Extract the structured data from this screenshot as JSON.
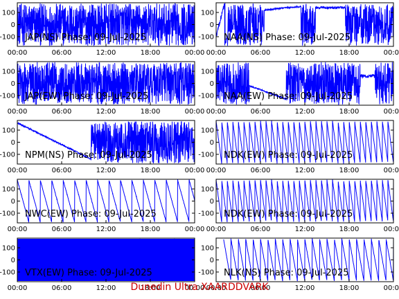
{
  "footer": {
    "credit": "Dunedin Ultra XAARDDVARK",
    "color": "#cc0000"
  },
  "chart_data": [
    {
      "type": "line",
      "title": "JAP(NS) Phase: 09-Jul-2025",
      "x_ticks": [
        "00:00",
        "06:00",
        "12:00",
        "18:00",
        "00:00"
      ],
      "y_ticks": [
        100,
        0,
        -100
      ],
      "xlim": [
        0,
        24
      ],
      "ylim": [
        -180,
        180
      ],
      "color": "#0000ff",
      "pattern": "dense_full"
    },
    {
      "type": "line",
      "title": "NAA(NS) Phase: 09-Jul-2025",
      "x_ticks": [
        "00:00",
        "06:00",
        "12:00",
        "18:00",
        "00:00"
      ],
      "y_ticks": [
        100,
        0,
        -100
      ],
      "xlim": [
        0,
        24
      ],
      "ylim": [
        -180,
        180
      ],
      "color": "#0000ff",
      "pattern": "dense_gap_day"
    },
    {
      "type": "line",
      "title": "JAP(EW) Phase: 09-Jul-2025",
      "x_ticks": [
        "00:00",
        "06:00",
        "12:00",
        "18:00",
        "00:00"
      ],
      "y_ticks": [
        100,
        0,
        -100
      ],
      "xlim": [
        0,
        24
      ],
      "ylim": [
        -180,
        180
      ],
      "color": "#0000ff",
      "pattern": "dense_full"
    },
    {
      "type": "line",
      "title": "NAA(EW) Phase: 09-Jul-2025",
      "x_ticks": [
        "00:00",
        "06:00",
        "12:00",
        "18:00",
        "00:00"
      ],
      "y_ticks": [
        100,
        0,
        -100
      ],
      "xlim": [
        0,
        24
      ],
      "ylim": [
        -180,
        180
      ],
      "color": "#0000ff",
      "pattern": "dense_gap_morning"
    },
    {
      "type": "line",
      "title": "NPM(NS) Phase: 09-Jul-2025",
      "x_ticks": [
        "00:00",
        "06:00",
        "12:00",
        "18:00",
        "00:00"
      ],
      "y_ticks": [
        100,
        0,
        -100
      ],
      "xlim": [
        0,
        24
      ],
      "ylim": [
        -180,
        180
      ],
      "color": "#0000ff",
      "pattern": "drift_then_dense"
    },
    {
      "type": "line",
      "title": "NDK(EW) Phase: 09-Jul-2025",
      "x_ticks": [
        "00:00",
        "06:00",
        "12:00",
        "18:00",
        "00:00"
      ],
      "y_ticks": [
        100,
        0,
        -100
      ],
      "xlim": [
        0,
        24
      ],
      "ylim": [
        -180,
        180
      ],
      "color": "#0000ff",
      "pattern": "sawtooth_fast"
    },
    {
      "type": "line",
      "title": "NWC(EW) Phase: 09-Jul-2025",
      "x_ticks": [
        "00:00",
        "06:00",
        "12:00",
        "18:00",
        "00:00"
      ],
      "y_ticks": [
        100,
        0,
        -100
      ],
      "xlim": [
        0,
        24
      ],
      "ylim": [
        -180,
        180
      ],
      "color": "#0000ff",
      "pattern": "sawtooth_slow"
    },
    {
      "type": "line",
      "title": "NDK(EW) Phase: 09-Jul-2025",
      "x_ticks": [
        "00:00",
        "06:00",
        "12:00",
        "18:00",
        "00:00"
      ],
      "y_ticks": [
        100,
        0,
        -100
      ],
      "xlim": [
        0,
        24
      ],
      "ylim": [
        -180,
        180
      ],
      "color": "#0000ff",
      "pattern": "sawtooth_fast"
    },
    {
      "type": "line",
      "title": "VTX(EW) Phase: 09-Jul-2025",
      "x_ticks": [
        "00:00",
        "06:00",
        "12:00",
        "18:00",
        "00:00"
      ],
      "y_ticks": [
        100,
        0,
        -100
      ],
      "xlim": [
        0,
        24
      ],
      "ylim": [
        -180,
        180
      ],
      "color": "#0000ff",
      "pattern": "solid_fill"
    },
    {
      "type": "line",
      "title": "NLK(NS) Phase: 09-Jul-2025",
      "x_ticks": [
        "00:00",
        "06:00",
        "12:00",
        "18:00",
        "00:00"
      ],
      "y_ticks": [
        100,
        0,
        -100
      ],
      "xlim": [
        0,
        24
      ],
      "ylim": [
        -180,
        180
      ],
      "color": "#0000ff",
      "pattern": "sawtooth_medium"
    }
  ]
}
